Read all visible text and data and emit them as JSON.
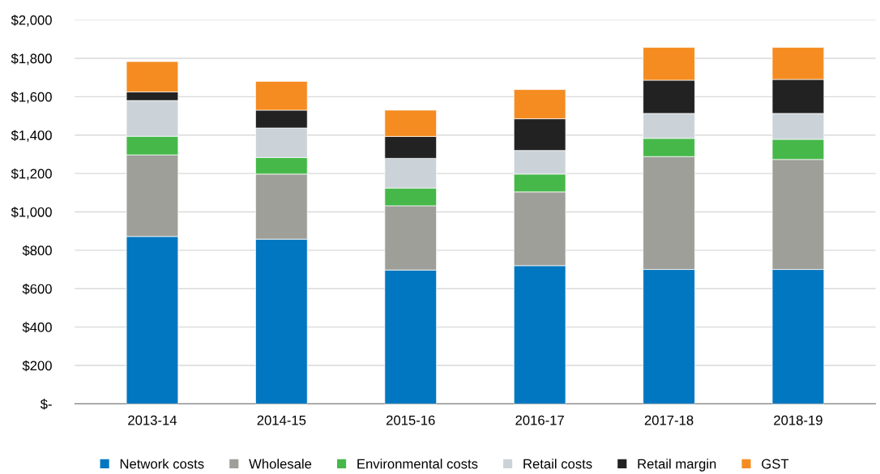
{
  "chart_data": {
    "type": "bar",
    "stacked": true,
    "categories": [
      "2013-14",
      "2014-15",
      "2015-16",
      "2016-17",
      "2017-18",
      "2018-19"
    ],
    "series": [
      {
        "name": "Network costs",
        "color": "#0077c0",
        "values": [
          872,
          858,
          697,
          720,
          700,
          700
        ]
      },
      {
        "name": "Wholesale",
        "color": "#9e9f99",
        "values": [
          425,
          339,
          335,
          384,
          588,
          573
        ]
      },
      {
        "name": "Environmental costs",
        "color": "#46b84a",
        "values": [
          97,
          86,
          92,
          93,
          95,
          105
        ]
      },
      {
        "name": "Retail costs",
        "color": "#cbd3d8",
        "values": [
          186,
          154,
          155,
          123,
          130,
          135
        ]
      },
      {
        "name": "Retail margin",
        "color": "#222222",
        "values": [
          45,
          93,
          114,
          165,
          173,
          177
        ]
      },
      {
        "name": "GST",
        "color": "#f58c21",
        "values": [
          158,
          150,
          137,
          152,
          171,
          167
        ]
      }
    ],
    "ylim": [
      0,
      2000
    ],
    "yticks": [
      {
        "value": 0,
        "label": "$-"
      },
      {
        "value": 200,
        "label": "$200"
      },
      {
        "value": 400,
        "label": "$400"
      },
      {
        "value": 600,
        "label": "$600"
      },
      {
        "value": 800,
        "label": "$800"
      },
      {
        "value": 1000,
        "label": "$1,000"
      },
      {
        "value": 1200,
        "label": "$1,200"
      },
      {
        "value": 1400,
        "label": "$1,400"
      },
      {
        "value": 1600,
        "label": "$1,600"
      },
      {
        "value": 1800,
        "label": "$1,800"
      },
      {
        "value": 2000,
        "label": "$2,000"
      }
    ],
    "grid": "y",
    "legend": "bottom"
  }
}
